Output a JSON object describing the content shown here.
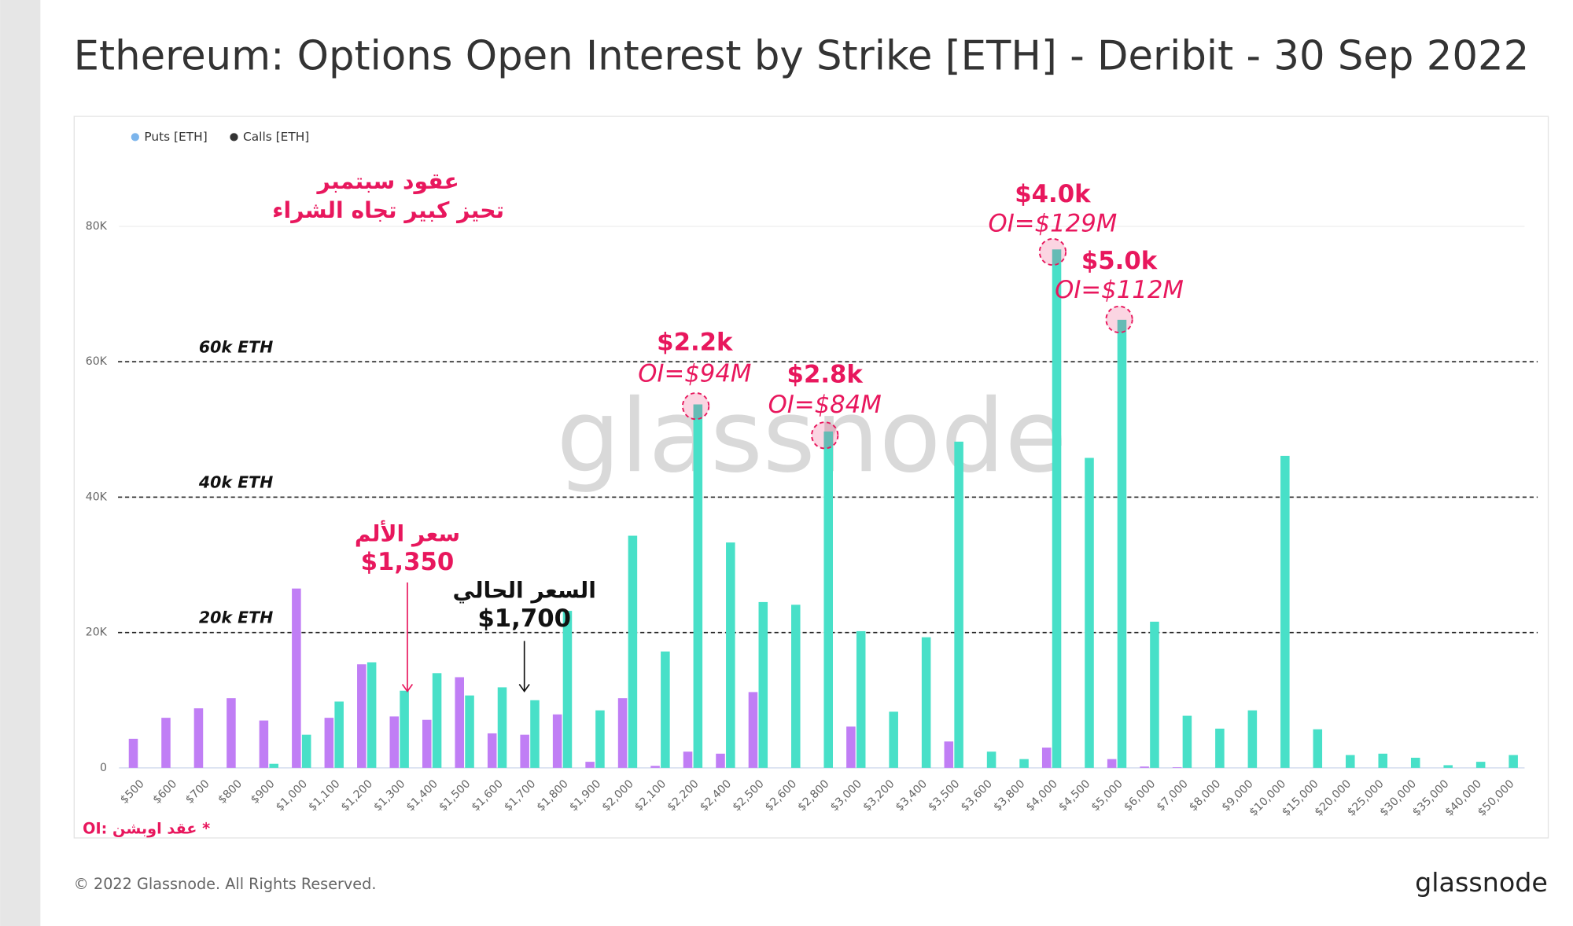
{
  "chart_data": {
    "type": "bar",
    "title": "Ethereum: Options Open Interest by Strike [ETH] - Deribit - 30 Sep 2022",
    "categories": [
      "$500",
      "$600",
      "$700",
      "$800",
      "$900",
      "$1,000",
      "$1,100",
      "$1,200",
      "$1,300",
      "$1,400",
      "$1,500",
      "$1,600",
      "$1,700",
      "$1,800",
      "$1,900",
      "$2,000",
      "$2,100",
      "$2,200",
      "$2,400",
      "$2,500",
      "$2,600",
      "$2,800",
      "$3,000",
      "$3,200",
      "$3,400",
      "$3,500",
      "$3,600",
      "$3,800",
      "$4,000",
      "$4,500",
      "$5,000",
      "$6,000",
      "$7,000",
      "$8,000",
      "$9,000",
      "$10,000",
      "$15,000",
      "$20,000",
      "$25,000",
      "$30,000",
      "$35,000",
      "$40,000",
      "$50,000"
    ],
    "series": [
      {
        "name": "Puts [ETH]",
        "color": "#c07ef5",
        "legend_color": "#7cb5ec",
        "values": [
          4300,
          7400,
          8800,
          10300,
          7000,
          26500,
          7400,
          15300,
          7600,
          7100,
          13400,
          5100,
          4900,
          7900,
          900,
          10300,
          300,
          2400,
          2100,
          11200,
          0,
          0,
          6100,
          0,
          0,
          3900,
          0,
          0,
          3000,
          0,
          1300,
          200,
          100,
          0,
          0,
          0,
          0,
          0,
          0,
          0,
          0,
          0,
          0
        ]
      },
      {
        "name": "Calls [ETH]",
        "color": "#48e0c8",
        "legend_color": "#333333",
        "values": [
          0,
          0,
          0,
          0,
          600,
          4900,
          9800,
          15600,
          11400,
          14000,
          10700,
          11900,
          10000,
          23200,
          8500,
          34300,
          17200,
          53700,
          33300,
          24500,
          24100,
          49700,
          20200,
          8300,
          19300,
          48200,
          2400,
          1300,
          76600,
          45800,
          66200,
          21600,
          7700,
          5800,
          8500,
          46100,
          5700,
          1900,
          2100,
          1500,
          400,
          900,
          1900
        ]
      }
    ],
    "ylim": [
      0,
      90000
    ],
    "yticks": [
      0,
      {
        "value": 20000,
        "label": "20K"
      },
      {
        "value": 40000,
        "label": "40K"
      },
      {
        "value": 60000,
        "label": "60K"
      },
      {
        "value": 80000,
        "label": "80K"
      }
    ],
    "grid": true,
    "legend": "top-left",
    "reference_lines": [
      {
        "value": 60000,
        "label": "60k ETH"
      },
      {
        "value": 40000,
        "label": "40k ETH"
      },
      {
        "value": 20000,
        "label": "20k ETH"
      }
    ],
    "annotations": [
      {
        "lines": [
          "عقود سبتمبر",
          "تحيز كبير تجاه الشراء"
        ],
        "color": "#e8175d"
      },
      {
        "lines": [
          "سعر الألم",
          "$1,350"
        ],
        "color": "#e8175d"
      },
      {
        "lines": [
          "السعر الحالي",
          "$1,700"
        ],
        "color": "#111111"
      },
      {
        "lines": [
          "$2.2k",
          "OI=$94M"
        ],
        "color": "#e8175d"
      },
      {
        "lines": [
          "$2.8k",
          "OI=$84M"
        ],
        "color": "#e8175d"
      },
      {
        "lines": [
          "$4.0k",
          "OI=$129M"
        ],
        "color": "#e8175d"
      },
      {
        "lines": [
          "$5.0k",
          "OI=$112M"
        ],
        "color": "#e8175d"
      }
    ],
    "footnote": "OI: عقد اوبشن *",
    "watermark": "glassnode"
  },
  "footer": {
    "copyright": "© 2022 Glassnode. All Rights Reserved.",
    "logo": "glassnode"
  }
}
